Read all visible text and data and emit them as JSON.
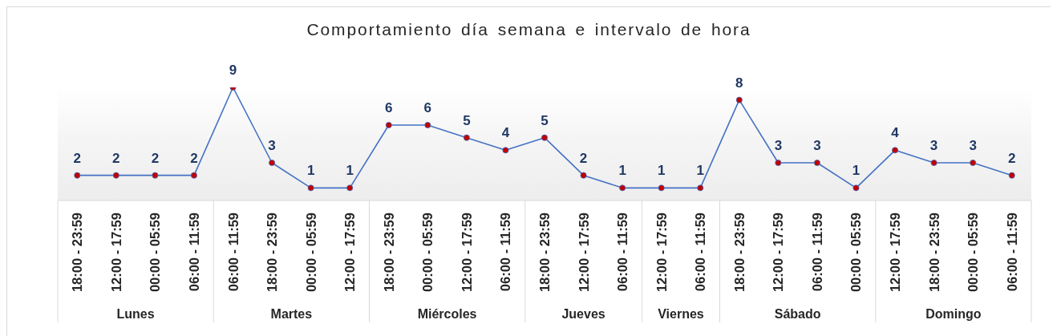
{
  "chart_data": {
    "type": "line",
    "title": "Comportamiento día semana e intervalo de hora",
    "categories": [
      "18:00 - 23:59",
      "12:00 - 17:59",
      "00:00 - 05:59",
      "06:00 - 11:59",
      "06:00 - 11:59",
      "18:00 - 23:59",
      "00:00 - 05:59",
      "12:00 - 17:59",
      "18:00 - 23:59",
      "00:00 - 05:59",
      "12:00 - 17:59",
      "06:00 - 11:59",
      "18:00 - 23:59",
      "12:00 - 17:59",
      "06:00 - 11:59",
      "12:00 - 17:59",
      "06:00 - 11:59",
      "18:00 - 23:59",
      "12:00 - 17:59",
      "06:00 - 11:59",
      "00:00 - 05:59",
      "12:00 - 17:59",
      "18:00 - 23:59",
      "00:00 - 05:59",
      "06:00 - 11:59"
    ],
    "series": [
      {
        "color": "#4472c4",
        "colors": [
          "#c00000",
          "#c00000",
          "#c00000",
          "#c00000",
          "#c00000",
          "#c00000",
          "#c00000",
          "#c00000",
          "#c00000",
          "#c00000",
          "#c00000",
          "#c00000",
          "#c00000",
          "#c00000",
          "#c00000",
          "#c00000",
          "#c00000",
          "#c00000",
          "#c00000",
          "#c00000",
          "#c00000",
          "#c00000",
          "#c00000",
          "#c00000",
          "#c00000"
        ],
        "values": [
          2,
          2,
          2,
          2,
          9,
          3,
          1,
          1,
          6,
          6,
          5,
          4,
          5,
          2,
          1,
          1,
          1,
          8,
          3,
          3,
          1,
          4,
          3,
          3,
          2
        ]
      }
    ],
    "marker": "circle",
    "data_labels": true,
    "annotations": [
      "Lunes",
      "Martes",
      "Miércoles",
      "Jueves",
      "Viernes",
      "Sábado",
      "Domingo"
    ]
  }
}
